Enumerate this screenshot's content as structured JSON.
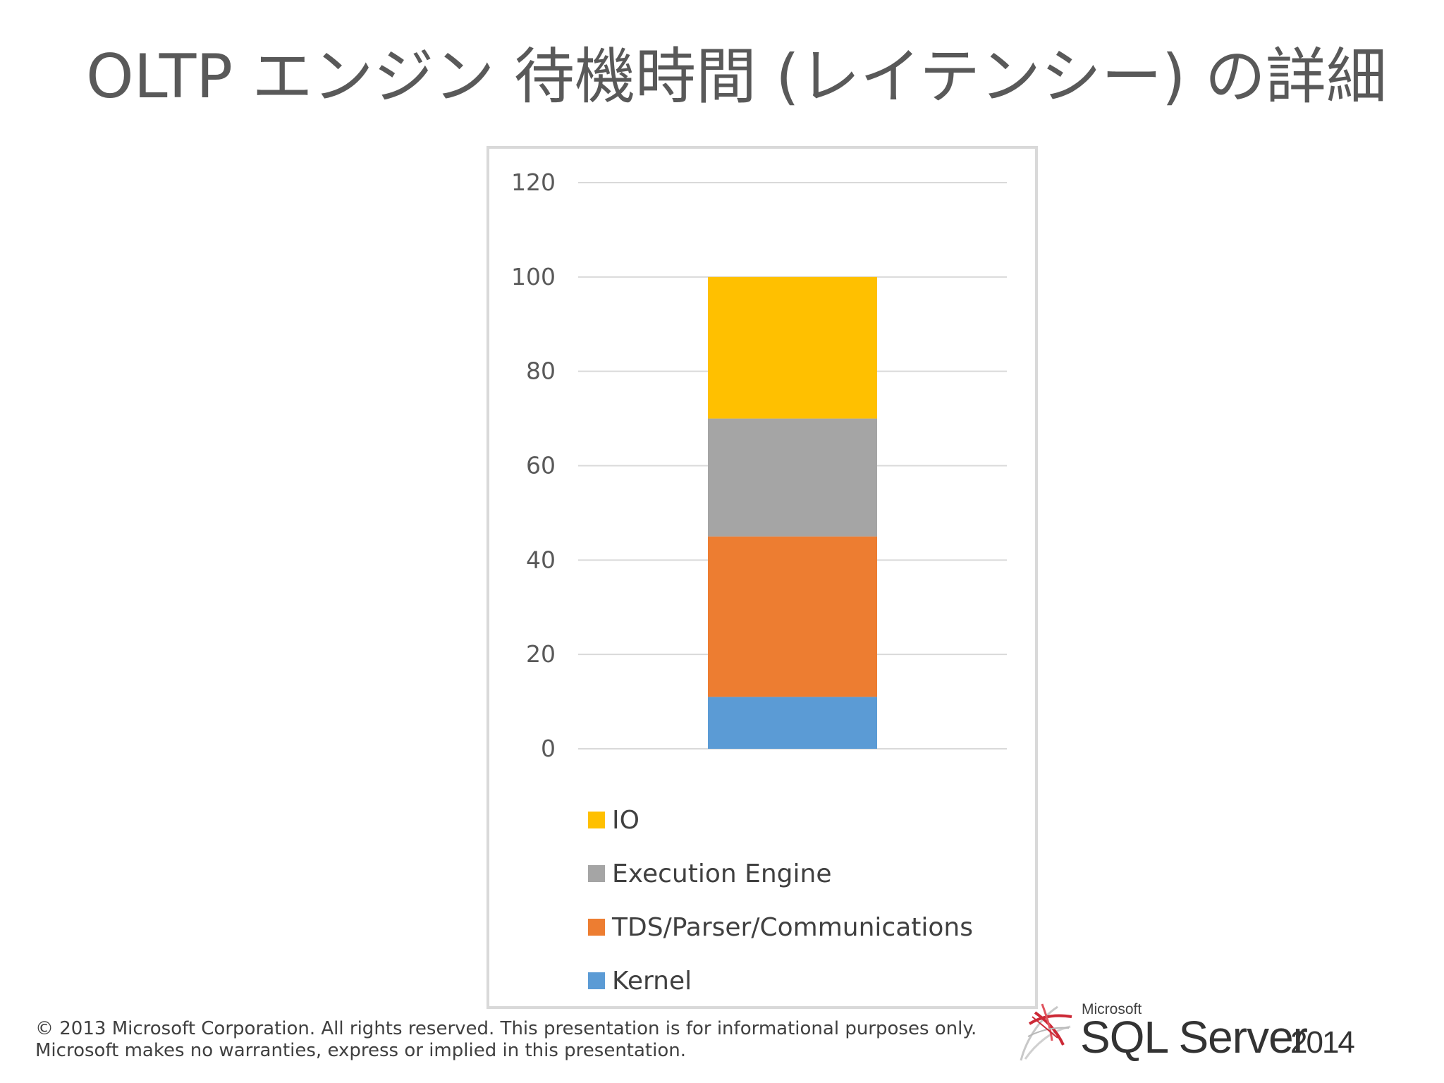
{
  "slide": {
    "title": "OLTP エンジン 待機時間 (レイテンシー) の詳細"
  },
  "chart_data": {
    "type": "bar",
    "stacked": true,
    "categories": [
      ""
    ],
    "series": [
      {
        "name": "Kernel",
        "values": [
          11
        ],
        "color": "#5b9bd5"
      },
      {
        "name": "TDS/Parser/Communications",
        "values": [
          34
        ],
        "color": "#ed7d31"
      },
      {
        "name": "Execution Engine",
        "values": [
          25
        ],
        "color": "#a5a5a5"
      },
      {
        "name": "IO",
        "values": [
          30
        ],
        "color": "#ffc000"
      }
    ],
    "title": "",
    "xlabel": "",
    "ylabel": "",
    "ylim": [
      0,
      120
    ],
    "yticks": [
      "0",
      "20",
      "40",
      "60",
      "80",
      "100",
      "120"
    ],
    "grid": true,
    "legend_position": "bottom",
    "legend_order": [
      "IO",
      "Execution Engine",
      "TDS/Parser/Communications",
      "Kernel"
    ]
  },
  "footer": {
    "line1": "© 2013 Microsoft Corporation.  All rights reserved.  This presentation is for informational purposes only.",
    "line2": "Microsoft makes no warranties, express or implied in this presentation."
  },
  "logo": {
    "company": "Microsoft",
    "product": "SQL Server",
    "year": "2014",
    "icon": "sql-server-logo-icon"
  }
}
